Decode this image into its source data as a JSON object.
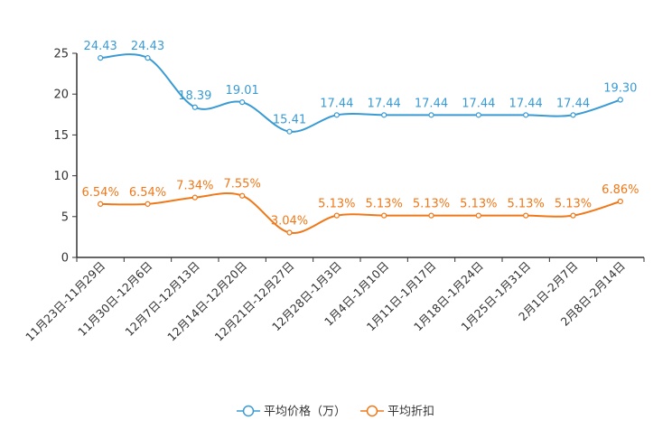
{
  "chart_data": {
    "type": "line",
    "categories": [
      "11月23日-11月29日",
      "11月30日-12月6日",
      "12月7日-12月13日",
      "12月14日-12月20日",
      "12月21日-12月27日",
      "12月28日-1月3日",
      "1月4日-1月10日",
      "1月11日-1月17日",
      "1月18日-1月24日",
      "1月25日-1月31日",
      "2月1日-2月7日",
      "2月8日-2月14日"
    ],
    "series": [
      {
        "name": "平均价格（万）",
        "color": "#3a9bd4",
        "values": [
          24.43,
          24.43,
          18.39,
          19.01,
          15.41,
          17.44,
          17.44,
          17.44,
          17.44,
          17.44,
          17.44,
          19.3
        ],
        "labels": [
          "24.43",
          "24.43",
          "18.39",
          "19.01",
          "15.41",
          "17.44",
          "17.44",
          "17.44",
          "17.44",
          "17.44",
          "17.44",
          "19.30"
        ]
      },
      {
        "name": "平均折扣",
        "color": "#f07818",
        "values": [
          6.54,
          6.54,
          7.34,
          7.55,
          3.04,
          5.13,
          5.13,
          5.13,
          5.13,
          5.13,
          5.13,
          6.86
        ],
        "labels": [
          "6.54%",
          "6.54%",
          "7.34%",
          "7.55%",
          "3.04%",
          "5.13%",
          "5.13%",
          "5.13%",
          "5.13%",
          "5.13%",
          "5.13%",
          "6.86%"
        ]
      }
    ],
    "yticks": [
      0,
      5,
      10,
      15,
      20,
      25
    ],
    "ylim": [
      0,
      25
    ],
    "title": "",
    "xlabel": "",
    "ylabel": "",
    "legend_position": "bottom-center"
  }
}
